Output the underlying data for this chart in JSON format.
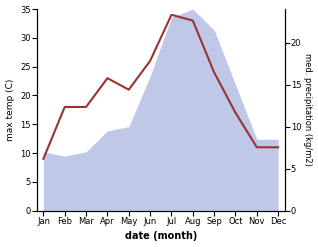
{
  "months": [
    "Jan",
    "Feb",
    "Mar",
    "Apr",
    "May",
    "Jun",
    "Jul",
    "Aug",
    "Sep",
    "Oct",
    "Nov",
    "Dec"
  ],
  "temp": [
    9.0,
    18.0,
    18.0,
    23.0,
    21.0,
    26.0,
    34.0,
    33.0,
    24.0,
    17.0,
    11.0,
    11.0
  ],
  "precip": [
    7.0,
    6.5,
    7.0,
    9.5,
    10.0,
    16.0,
    23.0,
    24.0,
    21.5,
    15.0,
    8.5,
    8.5
  ],
  "temp_color": "#993333",
  "precip_fill_color": "#c0c8e8",
  "temp_ylim": [
    0,
    35
  ],
  "precip_ylim": [
    0,
    24
  ],
  "temp_yticks": [
    0,
    5,
    10,
    15,
    20,
    25,
    30,
    35
  ],
  "precip_yticks": [
    0,
    5,
    10,
    15,
    20
  ],
  "xlabel": "date (month)",
  "ylabel_left": "max temp (C)",
  "ylabel_right": "med. precipitation (kg/m2)"
}
